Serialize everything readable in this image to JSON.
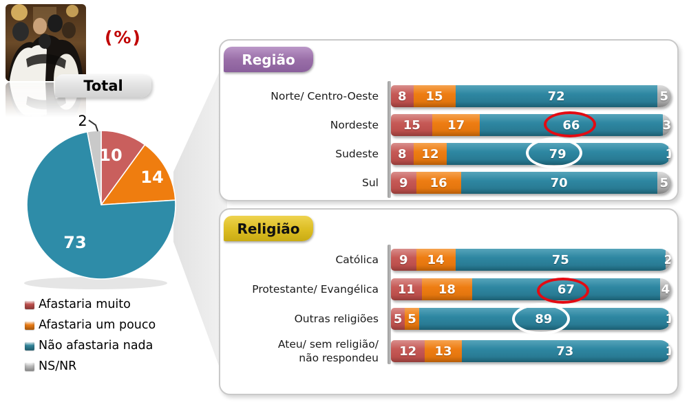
{
  "meta": {
    "unit_label": "(%)"
  },
  "pie": {
    "tab_label": "Total",
    "slices": [
      {
        "name": "Afastaria muito",
        "value": 10,
        "color": "#C95F5D"
      },
      {
        "name": "Afastaria um pouco",
        "value": 14,
        "color": "#EF7D0F"
      },
      {
        "name": "Não afastaria nada",
        "value": 73,
        "color": "#2E8CA8"
      },
      {
        "name": "NS/NR",
        "value": 2,
        "color": "#C9C9C9"
      }
    ]
  },
  "legend": {
    "items": [
      {
        "label": "Afastaria muito",
        "color": "#C0504D"
      },
      {
        "label": "Afastaria um pouco",
        "color": "#ED7D14"
      },
      {
        "label": "Não afastaria nada",
        "color": "#31859B"
      },
      {
        "label": "NS/NR",
        "color": "#BFBFBF"
      }
    ]
  },
  "panels": [
    {
      "title": "Região",
      "badge_color": "#9A6FA8",
      "rows": [
        {
          "label": "Norte/ Centro-Oeste",
          "values": [
            8,
            15,
            72,
            5
          ]
        },
        {
          "label": "Nordeste",
          "values": [
            15,
            17,
            66,
            3
          ],
          "highlight": "red-circle"
        },
        {
          "label": "Sudeste",
          "values": [
            8,
            12,
            79,
            1
          ],
          "highlight": "white-circle"
        },
        {
          "label": "Sul",
          "values": [
            9,
            16,
            70,
            5
          ]
        }
      ]
    },
    {
      "title": "Religião",
      "badge_color": "#DCBD22",
      "rows": [
        {
          "label": "Católica",
          "values": [
            9,
            14,
            75,
            2
          ]
        },
        {
          "label": "Protestante/ Evangélica",
          "values": [
            11,
            18,
            67,
            4
          ],
          "highlight": "red-circle"
        },
        {
          "label": "Outras religiões",
          "values": [
            5,
            5,
            89,
            1
          ],
          "highlight": "white-circle"
        },
        {
          "label": "Ateu/ sem religião/\nnão respondeu",
          "values": [
            12,
            13,
            73,
            1
          ]
        }
      ]
    }
  ],
  "chart_data": [
    {
      "type": "pie",
      "title": "Total",
      "unit": "%",
      "labels": [
        "Afastaria muito",
        "Afastaria um pouco",
        "Não afastaria nada",
        "NS/NR"
      ],
      "values": [
        10,
        14,
        73,
        2
      ],
      "colors": [
        "#C95F5D",
        "#EF7D0F",
        "#2E8CA8",
        "#C9C9C9"
      ],
      "legend_position": "bottom-left"
    },
    {
      "type": "bar",
      "subtype": "stacked-horizontal",
      "title": "Região",
      "unit": "%",
      "categories": [
        "Norte/ Centro-Oeste",
        "Nordeste",
        "Sudeste",
        "Sul"
      ],
      "series": [
        {
          "name": "Afastaria muito",
          "values": [
            8,
            15,
            8,
            9
          ]
        },
        {
          "name": "Afastaria um pouco",
          "values": [
            15,
            17,
            12,
            16
          ]
        },
        {
          "name": "Não afastaria nada",
          "values": [
            72,
            66,
            79,
            70
          ]
        },
        {
          "name": "NS/NR",
          "values": [
            5,
            3,
            1,
            5
          ]
        }
      ],
      "annotations": [
        {
          "category": "Nordeste",
          "series": "Não afastaria nada",
          "value": 66,
          "mark": "red-ellipse"
        },
        {
          "category": "Sudeste",
          "series": "Não afastaria nada",
          "value": 79,
          "mark": "white-ellipse"
        }
      ]
    },
    {
      "type": "bar",
      "subtype": "stacked-horizontal",
      "title": "Religião",
      "unit": "%",
      "categories": [
        "Católica",
        "Protestante/ Evangélica",
        "Outras religiões",
        "Ateu/ sem religião/ não respondeu"
      ],
      "series": [
        {
          "name": "Afastaria muito",
          "values": [
            9,
            11,
            5,
            12
          ]
        },
        {
          "name": "Afastaria um pouco",
          "values": [
            14,
            18,
            5,
            13
          ]
        },
        {
          "name": "Não afastaria nada",
          "values": [
            75,
            67,
            89,
            73
          ]
        },
        {
          "name": "NS/NR",
          "values": [
            2,
            4,
            1,
            1
          ]
        }
      ],
      "annotations": [
        {
          "category": "Protestante/ Evangélica",
          "series": "Não afastaria nada",
          "value": 67,
          "mark": "red-ellipse"
        },
        {
          "category": "Outras religiões",
          "series": "Não afastaria nada",
          "value": 89,
          "mark": "white-ellipse"
        }
      ]
    }
  ]
}
